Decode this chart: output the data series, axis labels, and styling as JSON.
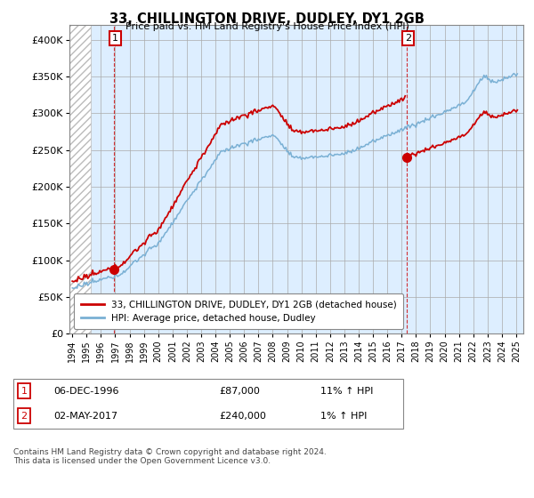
{
  "title": "33, CHILLINGTON DRIVE, DUDLEY, DY1 2GB",
  "subtitle": "Price paid vs. HM Land Registry's House Price Index (HPI)",
  "hpi_label": "HPI: Average price, detached house, Dudley",
  "property_label": "33, CHILLINGTON DRIVE, DUDLEY, DY1 2GB (detached house)",
  "annotation1_date": "06-DEC-1996",
  "annotation1_price": 87000,
  "annotation1_hpi": "11% ↑ HPI",
  "annotation2_date": "02-MAY-2017",
  "annotation2_price": 240000,
  "annotation2_hpi": "1% ↑ HPI",
  "red_color": "#cc0000",
  "blue_color": "#7ab0d4",
  "plot_bg_color": "#ddeeff",
  "hatch_color": "#c8c8c8",
  "grid_color": "#aaaaaa",
  "background_color": "#ffffff",
  "footnote": "Contains HM Land Registry data © Crown copyright and database right 2024.\nThis data is licensed under the Open Government Licence v3.0.",
  "ylim": [
    0,
    420000
  ],
  "yticks": [
    0,
    50000,
    100000,
    150000,
    200000,
    250000,
    300000,
    350000,
    400000
  ],
  "t1": 1996.917,
  "t2": 2017.333,
  "price1": 87000,
  "price2": 240000,
  "xmin": 1994.0,
  "xmax": 2025.0
}
